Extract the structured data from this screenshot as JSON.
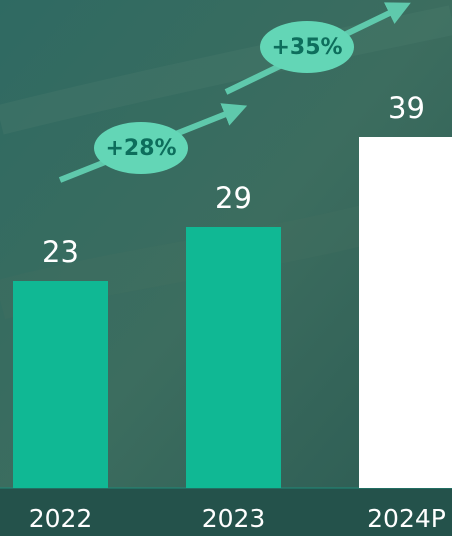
{
  "chart_data": {
    "type": "bar",
    "categories": [
      "2022",
      "2023",
      "2024P"
    ],
    "values": [
      23,
      29,
      39
    ],
    "colors": [
      "#10b894",
      "#10b894",
      "#ffffff"
    ],
    "ylim": [
      0,
      54
    ],
    "annotations": [
      "+28%",
      "+35%"
    ]
  }
}
